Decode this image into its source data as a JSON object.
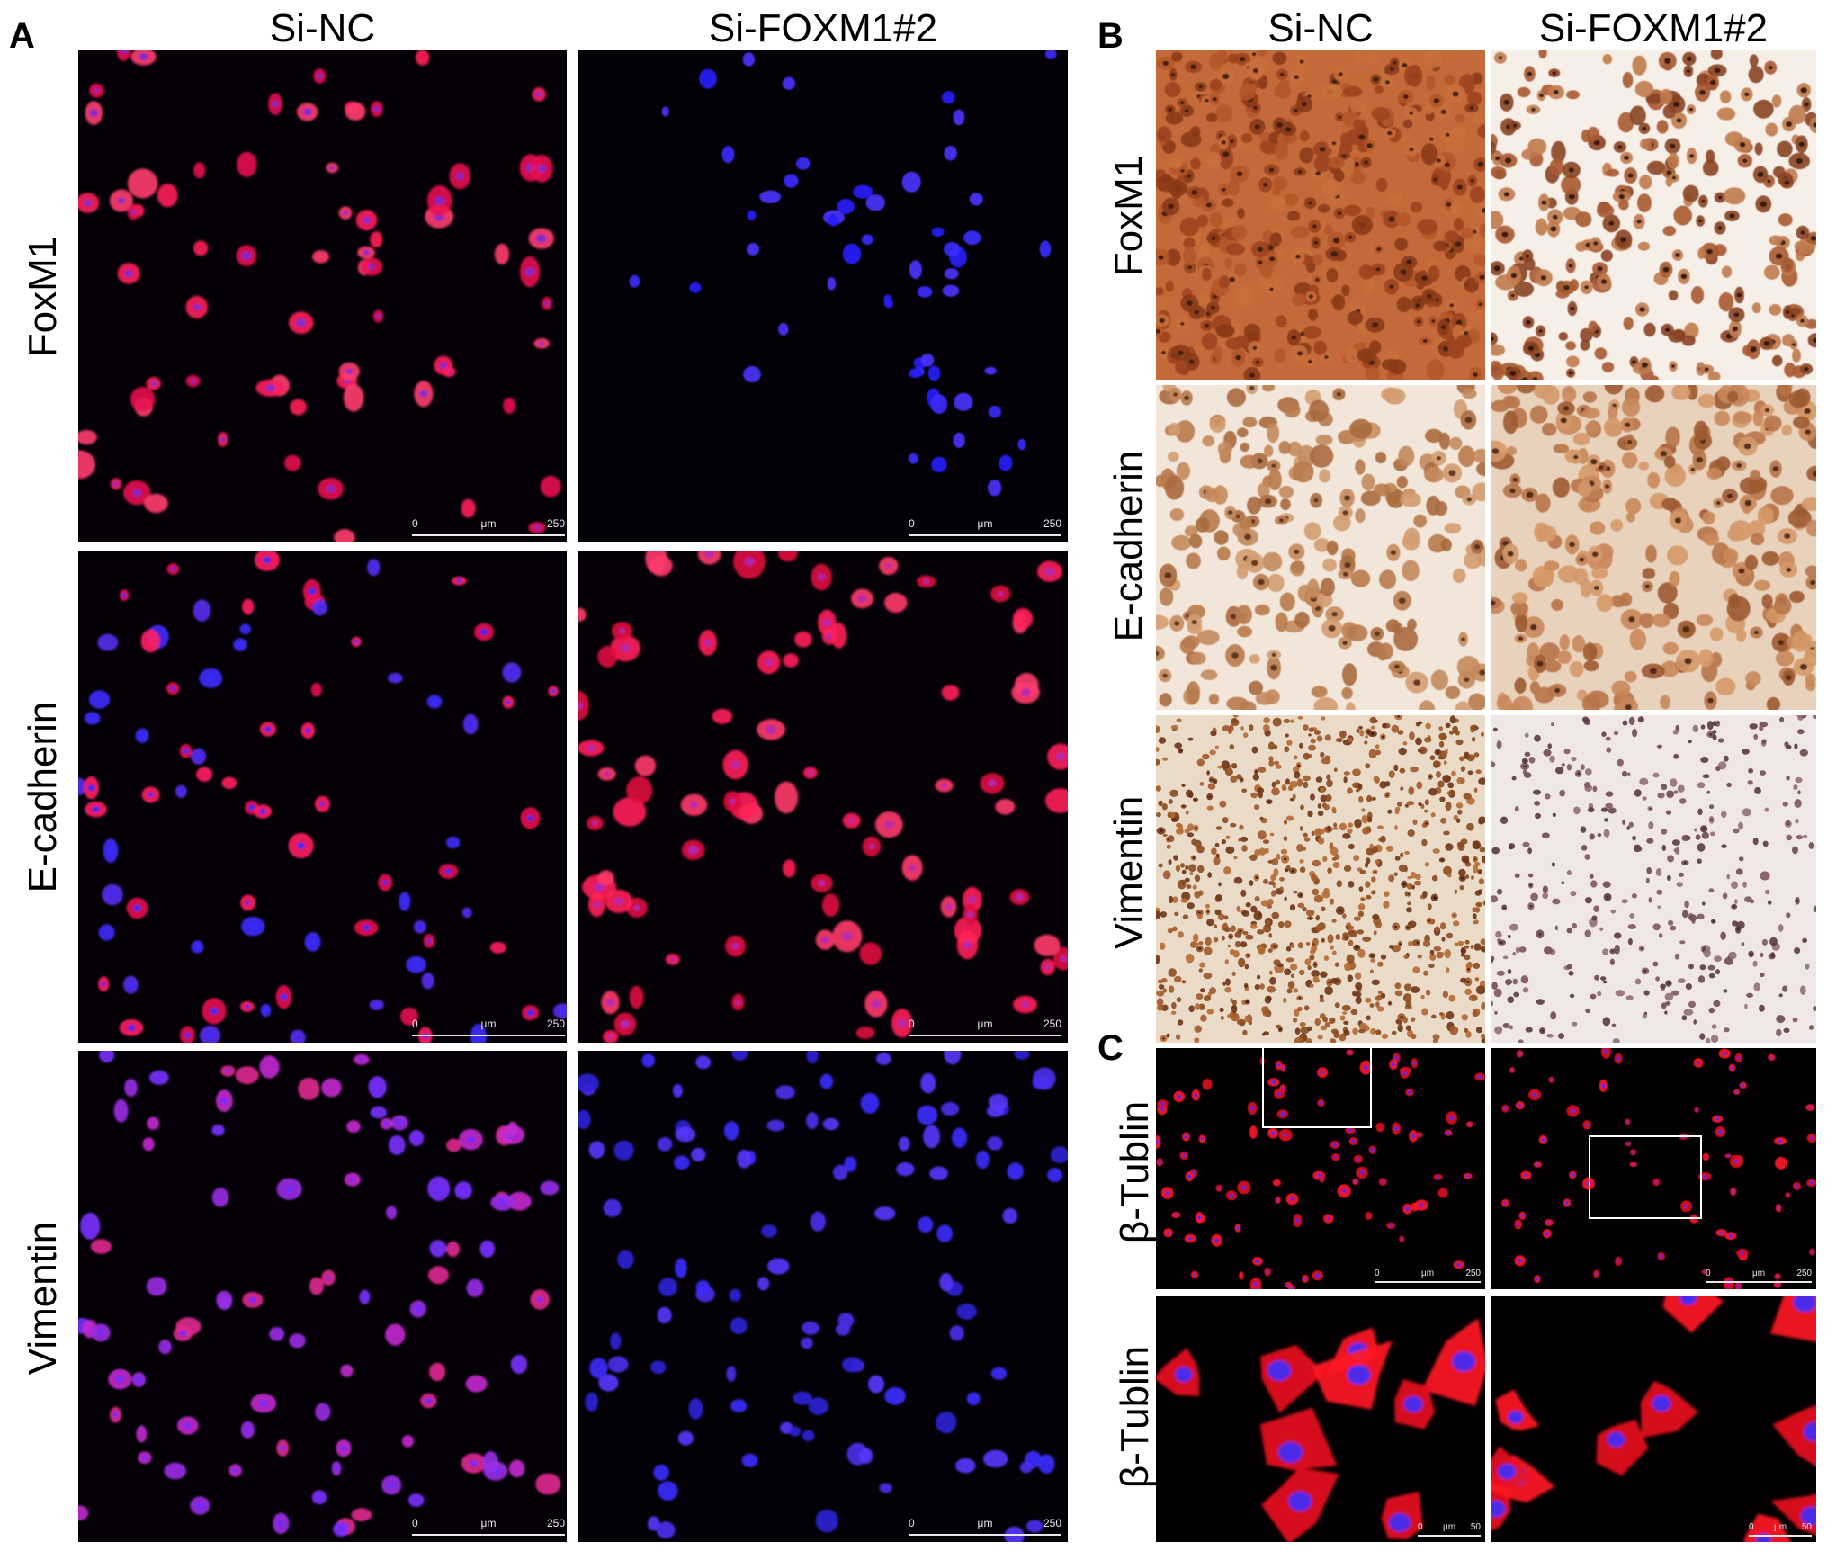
{
  "panel_letters": {
    "a": "A",
    "b": "B",
    "c": "C"
  },
  "columns": {
    "si_nc": "Si-NC",
    "si_foxm1": "Si-FOXM1#2"
  },
  "rows_a": {
    "r1": "FoxM1",
    "r2": "E-cadherin",
    "r3": "Vimentin"
  },
  "rows_b": {
    "r1": "FoxM1",
    "r2": "E-cadherin",
    "r3": "Vimentin"
  },
  "rows_c": {
    "r1": "β-Tublin",
    "r2": "β-Tublin"
  },
  "scale_250": {
    "start": "0",
    "unit": "μm",
    "end": "250"
  },
  "scale_50": {
    "start": "0",
    "unit": "μm",
    "end": "50"
  },
  "colors": {
    "fluor_background": "#050007",
    "red_stain": "#ff2a55",
    "blue_nuclei": "#3a2aff",
    "ihc_background": "#f1e6dc",
    "ihc_brown": "#a0522d"
  }
}
